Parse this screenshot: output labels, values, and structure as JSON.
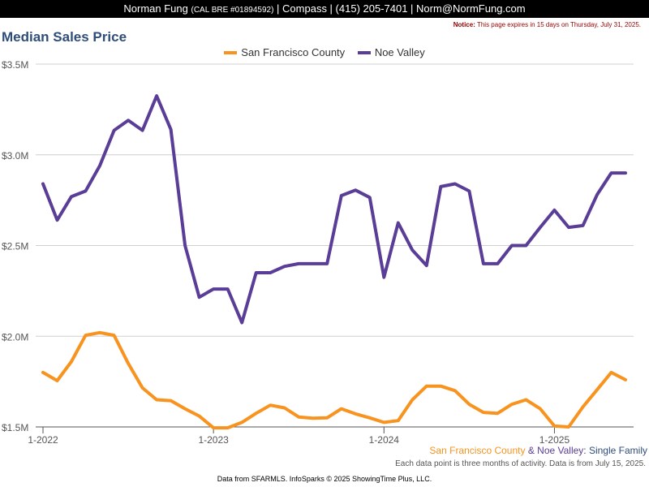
{
  "header": {
    "name": "Norman Fung",
    "license": "(CAL BRE #01894592)",
    "rest": "| Compass | (415) 205-7401 | Norm@NormFung.com"
  },
  "notice": {
    "label": "Notice:",
    "text": "This page expires in 15 days on Thursday, July 31, 2025."
  },
  "footer": {
    "subtitle_sf": "San Francisco County",
    "subtitle_amp": " & ",
    "subtitle_nv": "Noe Valley",
    "subtitle_rest": ": Single Family",
    "note": "Each data point is three months of activity. Data is from July 15, 2025.",
    "credit": "Data from SFARMLS. InfoSparks © 2025 ShowingTime Plus, LLC."
  },
  "colors": {
    "sf": "#f7931e",
    "nv": "#5a3d96",
    "title": "#2f4d7a"
  },
  "chart_data": {
    "type": "line",
    "title": "Median Sales Price",
    "xlabel": "",
    "ylabel": "",
    "ylim": [
      1500000,
      3500000
    ],
    "yticks": [
      {
        "value": 1500000,
        "label": "$1.5M"
      },
      {
        "value": 2000000,
        "label": "$2.0M"
      },
      {
        "value": 2500000,
        "label": "$2.5M"
      },
      {
        "value": 3000000,
        "label": "$3.0M"
      },
      {
        "value": 3500000,
        "label": "$3.5M"
      }
    ],
    "x": [
      "2022-01",
      "2022-02",
      "2022-03",
      "2022-04",
      "2022-05",
      "2022-06",
      "2022-07",
      "2022-08",
      "2022-09",
      "2022-10",
      "2022-11",
      "2022-12",
      "2023-01",
      "2023-02",
      "2023-03",
      "2023-04",
      "2023-05",
      "2023-06",
      "2023-07",
      "2023-08",
      "2023-09",
      "2023-10",
      "2023-11",
      "2023-12",
      "2024-01",
      "2024-02",
      "2024-03",
      "2024-04",
      "2024-05",
      "2024-06",
      "2024-07",
      "2024-08",
      "2024-09",
      "2024-10",
      "2024-11",
      "2024-12",
      "2025-01",
      "2025-02",
      "2025-03",
      "2025-04",
      "2025-05",
      "2025-06"
    ],
    "xticks": [
      {
        "value": "2022-01",
        "label": "1-2022"
      },
      {
        "value": "2023-01",
        "label": "1-2023"
      },
      {
        "value": "2024-01",
        "label": "1-2024"
      },
      {
        "value": "2025-01",
        "label": "1-2025"
      }
    ],
    "grid": true,
    "legend_position": "top-center",
    "series": [
      {
        "name": "San Francisco County",
        "color": "#f7931e",
        "values": [
          1800000,
          1755000,
          1860000,
          2005000,
          2020000,
          2005000,
          1850000,
          1715000,
          1650000,
          1645000,
          1600000,
          1560000,
          1495000,
          1495000,
          1525000,
          1575000,
          1620000,
          1605000,
          1555000,
          1548000,
          1550000,
          1600000,
          1572000,
          1550000,
          1525000,
          1535000,
          1650000,
          1725000,
          1725000,
          1700000,
          1625000,
          1580000,
          1575000,
          1625000,
          1650000,
          1600000,
          1505000,
          1500000,
          1610000,
          1705000,
          1800000,
          1760000
        ]
      },
      {
        "name": "Noe Valley",
        "color": "#5a3d96",
        "values": [
          2840000,
          2640000,
          2770000,
          2800000,
          2940000,
          3135000,
          3190000,
          3135000,
          3325000,
          3140000,
          2500000,
          2215000,
          2260000,
          2260000,
          2075000,
          2350000,
          2350000,
          2385000,
          2400000,
          2400000,
          2400000,
          2775000,
          2805000,
          2765000,
          2325000,
          2625000,
          2475000,
          2390000,
          2825000,
          2840000,
          2800000,
          2400000,
          2400000,
          2500000,
          2500000,
          2600000,
          2695000,
          2600000,
          2610000,
          2780000,
          2900000,
          2900000
        ]
      }
    ]
  }
}
